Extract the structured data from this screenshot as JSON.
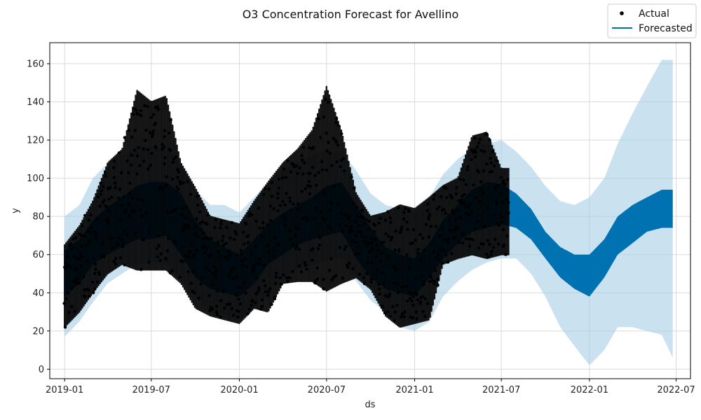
{
  "chart_data": {
    "type": "line",
    "title": "O3 Concentration Forecast for Avellino",
    "xlabel": "ds",
    "ylabel": "y",
    "x_range": [
      "2018-12-01",
      "2022-07-31"
    ],
    "ylim": [
      -5,
      171
    ],
    "grid": true,
    "legend_position": "top-right",
    "x_ticks": [
      "2019-01",
      "2019-07",
      "2020-01",
      "2020-07",
      "2021-01",
      "2021-07",
      "2022-01",
      "2022-07"
    ],
    "y_ticks": [
      0,
      20,
      40,
      60,
      80,
      100,
      120,
      140,
      160
    ],
    "colors": {
      "actual": "#000000",
      "forecast": "#0072B2",
      "interval": "#A6CDE5",
      "grid": "#d9d9d9"
    },
    "series": [
      {
        "name": "Actual",
        "kind": "points",
        "x": [
          "2019-01-01",
          "2019-02-01",
          "2019-03-01",
          "2019-04-01",
          "2019-05-01",
          "2019-06-01",
          "2019-07-01",
          "2019-08-01",
          "2019-09-01",
          "2019-10-01",
          "2019-11-01",
          "2019-12-01",
          "2020-01-01",
          "2020-02-01",
          "2020-03-01",
          "2020-04-01",
          "2020-05-01",
          "2020-06-01",
          "2020-07-01",
          "2020-08-01",
          "2020-09-01",
          "2020-10-01",
          "2020-11-01",
          "2020-12-01",
          "2021-01-01",
          "2021-02-01",
          "2021-03-01",
          "2021-04-01",
          "2021-05-01",
          "2021-06-01",
          "2021-07-01"
        ],
        "y_min": [
          22,
          30,
          40,
          50,
          55,
          52,
          52,
          52,
          45,
          32,
          28,
          26,
          24,
          32,
          30,
          45,
          46,
          46,
          41,
          45,
          48,
          42,
          28,
          22,
          24,
          26,
          55,
          58,
          60,
          58,
          60
        ],
        "y_max": [
          65,
          75,
          88,
          108,
          115,
          146,
          140,
          143,
          108,
          95,
          80,
          78,
          76,
          88,
          98,
          108,
          115,
          125,
          148,
          125,
          92,
          80,
          82,
          86,
          84,
          90,
          96,
          100,
          122,
          124,
          105
        ]
      },
      {
        "name": "Forecasted",
        "kind": "band",
        "x": [
          "2019-01-01",
          "2019-02-01",
          "2019-03-01",
          "2019-04-01",
          "2019-05-01",
          "2019-06-01",
          "2019-07-01",
          "2019-08-01",
          "2019-09-01",
          "2019-10-01",
          "2019-11-01",
          "2019-12-01",
          "2020-01-01",
          "2020-02-01",
          "2020-03-01",
          "2020-04-01",
          "2020-05-01",
          "2020-06-01",
          "2020-07-01",
          "2020-08-01",
          "2020-09-01",
          "2020-10-01",
          "2020-11-01",
          "2020-12-01",
          "2021-01-01",
          "2021-02-01",
          "2021-03-01",
          "2021-04-01",
          "2021-05-01",
          "2021-06-01",
          "2021-07-01",
          "2021-08-01",
          "2021-09-01",
          "2021-10-01",
          "2021-11-01",
          "2021-12-01",
          "2022-01-01",
          "2022-02-01",
          "2022-03-01",
          "2022-04-01",
          "2022-05-01",
          "2022-06-01",
          "2022-06-24"
        ],
        "y_min": [
          38,
          45,
          55,
          60,
          64,
          68,
          68,
          70,
          60,
          48,
          42,
          40,
          38,
          45,
          55,
          60,
          65,
          68,
          70,
          72,
          58,
          48,
          42,
          40,
          38,
          48,
          58,
          66,
          72,
          74,
          76,
          74,
          68,
          58,
          48,
          42,
          38,
          48,
          60,
          66,
          72,
          74,
          74
        ],
        "y_max": [
          62,
          68,
          78,
          85,
          90,
          96,
          98,
          98,
          92,
          78,
          68,
          64,
          60,
          68,
          76,
          82,
          86,
          90,
          96,
          98,
          86,
          74,
          64,
          60,
          58,
          66,
          78,
          86,
          94,
          98,
          97,
          92,
          84,
          72,
          64,
          60,
          60,
          68,
          80,
          86,
          90,
          94,
          94
        ],
        "interval_lower": [
          17,
          25,
          35,
          45,
          50,
          55,
          56,
          55,
          48,
          38,
          30,
          28,
          26,
          32,
          40,
          48,
          52,
          55,
          57,
          58,
          46,
          36,
          30,
          22,
          20,
          25,
          38,
          46,
          52,
          56,
          58,
          58,
          50,
          38,
          22,
          12,
          2,
          10,
          22,
          22,
          20,
          18,
          6
        ],
        "interval_upper": [
          80,
          86,
          100,
          108,
          112,
          116,
          116,
          116,
          108,
          94,
          86,
          86,
          82,
          90,
          98,
          104,
          108,
          112,
          114,
          114,
          104,
          92,
          86,
          84,
          82,
          90,
          102,
          110,
          116,
          118,
          120,
          114,
          106,
          96,
          88,
          86,
          90,
          100,
          118,
          134,
          148,
          162,
          162
        ]
      }
    ]
  }
}
